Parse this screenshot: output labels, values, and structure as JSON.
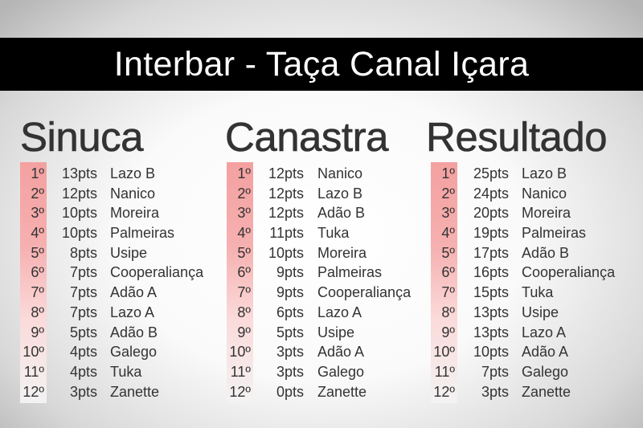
{
  "title": "Interbar - Taça Canal Içara",
  "columns": [
    {
      "heading": "Sinuca",
      "rows": [
        {
          "rank": "1º",
          "pts": "13pts",
          "team": "Lazo B"
        },
        {
          "rank": "2º",
          "pts": "12pts",
          "team": "Nanico"
        },
        {
          "rank": "3º",
          "pts": "10pts",
          "team": "Moreira"
        },
        {
          "rank": "4º",
          "pts": "10pts",
          "team": "Palmeiras"
        },
        {
          "rank": "5º",
          "pts": "8pts",
          "team": "Usipe"
        },
        {
          "rank": "6º",
          "pts": "7pts",
          "team": "Cooperaliança"
        },
        {
          "rank": "7º",
          "pts": "7pts",
          "team": "Adão A"
        },
        {
          "rank": "8º",
          "pts": "7pts",
          "team": "Lazo A"
        },
        {
          "rank": "9º",
          "pts": "5pts",
          "team": "Adão B"
        },
        {
          "rank": "10º",
          "pts": "4pts",
          "team": "Galego"
        },
        {
          "rank": "11º",
          "pts": "4pts",
          "team": "Tuka"
        },
        {
          "rank": "12º",
          "pts": "3pts",
          "team": "Zanette"
        }
      ]
    },
    {
      "heading": "Canastra",
      "rows": [
        {
          "rank": "1º",
          "pts": "12pts",
          "team": "Nanico"
        },
        {
          "rank": "2º",
          "pts": "12pts",
          "team": "Lazo B"
        },
        {
          "rank": "3º",
          "pts": "12pts",
          "team": "Adão B"
        },
        {
          "rank": "4º",
          "pts": "11pts",
          "team": "Tuka"
        },
        {
          "rank": "5º",
          "pts": "10pts",
          "team": "Moreira"
        },
        {
          "rank": "6º",
          "pts": "9pts",
          "team": "Palmeiras"
        },
        {
          "rank": "7º",
          "pts": "9pts",
          "team": "Cooperaliança"
        },
        {
          "rank": "8º",
          "pts": "6pts",
          "team": "Lazo A"
        },
        {
          "rank": "9º",
          "pts": "5pts",
          "team": "Usipe"
        },
        {
          "rank": "10º",
          "pts": "3pts",
          "team": "Adão A"
        },
        {
          "rank": "11º",
          "pts": "3pts",
          "team": "Galego"
        },
        {
          "rank": "12º",
          "pts": "0pts",
          "team": "Zanette"
        }
      ]
    },
    {
      "heading": "Resultado",
      "rows": [
        {
          "rank": "1º",
          "pts": "25pts",
          "team": "Lazo B"
        },
        {
          "rank": "2º",
          "pts": "24pts",
          "team": "Nanico"
        },
        {
          "rank": "3º",
          "pts": "20pts",
          "team": "Moreira"
        },
        {
          "rank": "4º",
          "pts": "19pts",
          "team": "Palmeiras"
        },
        {
          "rank": "5º",
          "pts": "17pts",
          "team": "Adão B"
        },
        {
          "rank": "6º",
          "pts": "16pts",
          "team": "Cooperaliança"
        },
        {
          "rank": "7º",
          "pts": "15pts",
          "team": "Tuka"
        },
        {
          "rank": "8º",
          "pts": "13pts",
          "team": "Usipe"
        },
        {
          "rank": "9º",
          "pts": "13pts",
          "team": "Lazo A"
        },
        {
          "rank": "10º",
          "pts": "10pts",
          "team": "Adão A"
        },
        {
          "rank": "11º",
          "pts": "7pts",
          "team": "Galego"
        },
        {
          "rank": "12º",
          "pts": "3pts",
          "team": "Zanette"
        }
      ]
    }
  ]
}
